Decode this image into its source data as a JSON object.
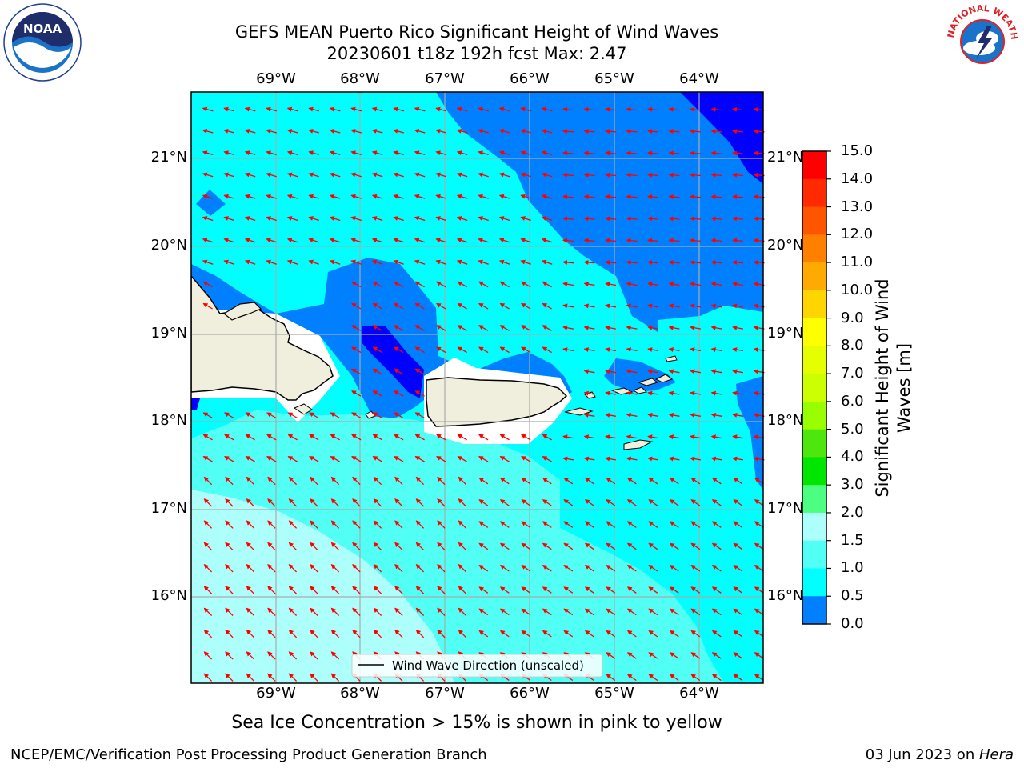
{
  "title_line1": "GEFS MEAN Puerto Rico Significant Height of Wind Waves",
  "title_line2": "20230601 t18z 192h fcst   Max: 2.47",
  "subtitle": "Sea Ice Concentration > 15% is shown in pink to yellow",
  "footer_left": "NCEP/EMC/Verification Post Processing Product Generation Branch",
  "footer_right_date": "03 Jun 2023 on ",
  "footer_right_host": "Hera",
  "logo_left": {
    "icon": "noaa-logo",
    "text": "NOAA"
  },
  "logo_right": {
    "icon": "nws-logo",
    "text": "NATIONAL WEATHER SERVICE"
  },
  "legend_label": "Wind Wave Direction (unscaled)",
  "lon_labels": [
    "69°W",
    "68°W",
    "67°W",
    "66°W",
    "65°W",
    "64°W"
  ],
  "lat_labels": [
    "21°N",
    "20°N",
    "19°N",
    "18°N",
    "17°N",
    "16°N"
  ],
  "colorbar": {
    "label": "Significant Height of Wind Waves [m]",
    "ticks": [
      "15.0",
      "14.0",
      "13.0",
      "12.0",
      "11.0",
      "10.0",
      "9.0",
      "8.0",
      "7.0",
      "6.0",
      "5.0",
      "4.0",
      "3.0",
      "2.0",
      "1.5",
      "1.0",
      "0.5",
      "0.0"
    ],
    "colors": [
      "#ff0000",
      "#ff2a00",
      "#ff5500",
      "#ff8000",
      "#ffaa00",
      "#ffd500",
      "#ffff00",
      "#e6ff00",
      "#ccff00",
      "#99ff00",
      "#4de60d",
      "#00e600",
      "#4dff80",
      "#adfffb",
      "#52fff5",
      "#00ffff",
      "#0080ff",
      "#0000ff"
    ]
  },
  "map_colors": {
    "band_0_0_5": "#0000ff",
    "band_0_5_1_0": "#0080ff",
    "band_1_0_1_5": "#00ffff",
    "band_1_5_2_0": "#52fff5",
    "band_2_0_3_0": "#adfffb",
    "land": "#f0eedc",
    "arrow": "#ff0000"
  }
}
